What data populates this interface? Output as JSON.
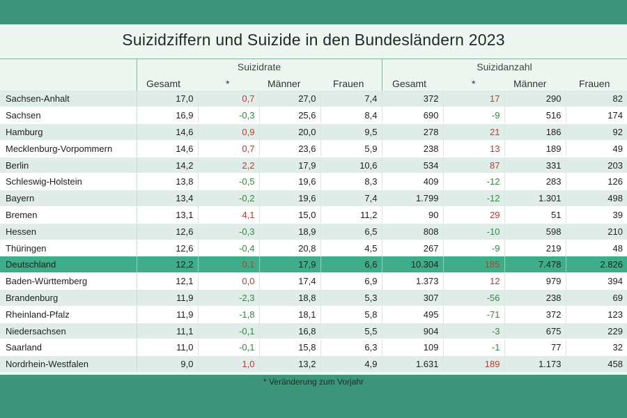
{
  "title": "Suizidziffern und Suizide in den Bundesländern 2023",
  "groups": {
    "rate": "Suizidrate",
    "count": "Suizidanzahl"
  },
  "columns": [
    "Gesamt",
    "*",
    "Männer",
    "Frauen",
    "Gesamt",
    "*",
    "Männer",
    "Frauen"
  ],
  "rows": [
    [
      "Sachsen-Anhalt",
      "17,0",
      "0,7",
      "27,0",
      "7,4",
      "372",
      "17",
      "290",
      "82"
    ],
    [
      "Sachsen",
      "16,9",
      "-0,3",
      "25,6",
      "8,4",
      "690",
      "-9",
      "516",
      "174"
    ],
    [
      "Hamburg",
      "14,6",
      "0,9",
      "20,0",
      "9,5",
      "278",
      "21",
      "186",
      "92"
    ],
    [
      "Mecklenburg-Vorpommern",
      "14,6",
      "0,7",
      "23,6",
      "5,9",
      "238",
      "13",
      "189",
      "49"
    ],
    [
      "Berlin",
      "14,2",
      "2,2",
      "17,9",
      "10,6",
      "534",
      "87",
      "331",
      "203"
    ],
    [
      "Schleswig-Holstein",
      "13,8",
      "-0,5",
      "19,6",
      "8,3",
      "409",
      "-12",
      "283",
      "126"
    ],
    [
      "Bayern",
      "13,4",
      "-0,2",
      "19,6",
      "7,4",
      "1.799",
      "-12",
      "1.301",
      "498"
    ],
    [
      "Bremen",
      "13,1",
      "4,1",
      "15,0",
      "11,2",
      "90",
      "29",
      "51",
      "39"
    ],
    [
      "Hessen",
      "12,6",
      "-0,3",
      "18,9",
      "6,5",
      "808",
      "-10",
      "598",
      "210"
    ],
    [
      "Thüringen",
      "12,6",
      "-0,4",
      "20,8",
      "4,5",
      "267",
      "-9",
      "219",
      "48"
    ],
    [
      "Deutschland",
      "12,2",
      "0,1",
      "17,9",
      "6,6",
      "10.304",
      "185",
      "7.478",
      "2.826"
    ],
    [
      "Baden-Württemberg",
      "12,1",
      "0,0",
      "17,4",
      "6,9",
      "1.373",
      "12",
      "979",
      "394"
    ],
    [
      "Brandenburg",
      "11,9",
      "-2,3",
      "18,8",
      "5,3",
      "307",
      "-56",
      "238",
      "69"
    ],
    [
      "Rheinland-Pfalz",
      "11,9",
      "-1,8",
      "18,1",
      "5,8",
      "495",
      "-71",
      "372",
      "123"
    ],
    [
      "Niedersachsen",
      "11,1",
      "-0,1",
      "16,8",
      "5,5",
      "904",
      "-3",
      "675",
      "229"
    ],
    [
      "Saarland",
      "11,0",
      "-0,1",
      "15,8",
      "6,3",
      "109",
      "-1",
      "77",
      "32"
    ],
    [
      "Nordrhein-Westfalen",
      "9,0",
      "1,0",
      "13,2",
      "4,9",
      "1.631",
      "189",
      "1.173",
      "458"
    ]
  ],
  "footnote": "* Veränderung zum Vorjahr",
  "colors": {
    "positive_change": "#c0392b",
    "negative_change": "#2e8b3e",
    "highlight_row": "#3fad8a",
    "frame": "#3d9579"
  }
}
